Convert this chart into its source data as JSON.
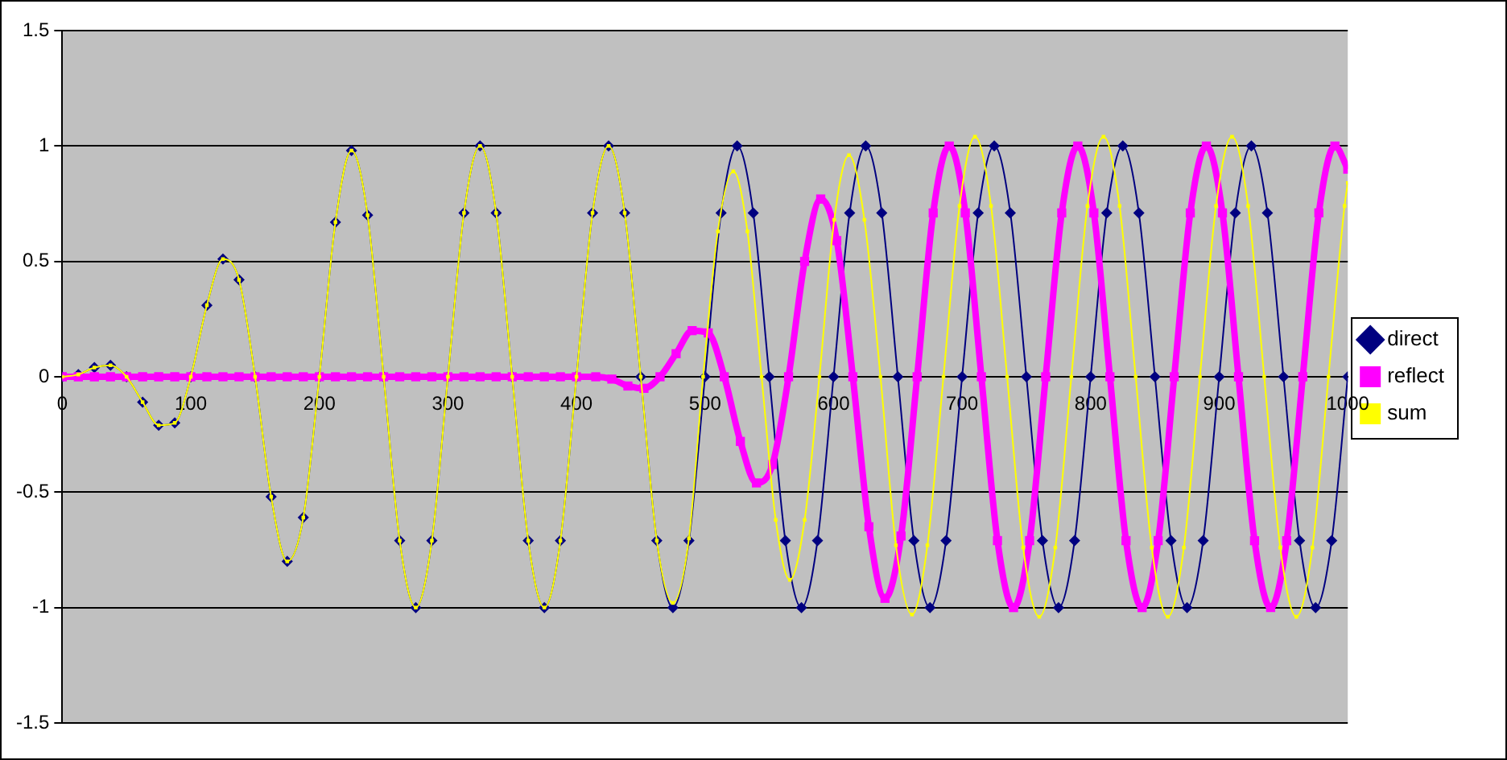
{
  "chart_data": {
    "type": "line",
    "xlim": [
      0,
      1000
    ],
    "xticks": [
      0,
      100,
      200,
      300,
      400,
      500,
      600,
      700,
      800,
      900,
      1000
    ],
    "ylim": [
      -1.5,
      1.5
    ],
    "yticks": [
      -1.5,
      -1,
      -0.5,
      0,
      0.5,
      1,
      1.5
    ],
    "grid": "y",
    "legend": "right",
    "series": [
      {
        "name": "direct",
        "color": "#000080",
        "marker": "diamond",
        "x": [
          0,
          12.5,
          25,
          37.5,
          50,
          62.5,
          75,
          87.5,
          100,
          112.5,
          125,
          137.5,
          150,
          162.5,
          175,
          187.5,
          200,
          212.5,
          225,
          237.5,
          250,
          262.5,
          275,
          287.5,
          300,
          312.5,
          325,
          337.5,
          350,
          362.5,
          375,
          387.5,
          400,
          412.5,
          425,
          437.5,
          450,
          462.5,
          475,
          487.5,
          500,
          512.5,
          525,
          537.5,
          550,
          562.5,
          575,
          587.5,
          600,
          612.5,
          625,
          637.5,
          650,
          662.5,
          675,
          687.5,
          700,
          712.5,
          725,
          737.5,
          750,
          762.5,
          775,
          787.5,
          800,
          812.5,
          825,
          837.5,
          850,
          862.5,
          875,
          887.5,
          900,
          912.5,
          925,
          937.5,
          950,
          962.5,
          975,
          987.5,
          1000
        ],
        "values": [
          0,
          0.01,
          0.04,
          0.05,
          0,
          -0.11,
          -0.21,
          -0.2,
          0,
          0.31,
          0.51,
          0.42,
          0,
          -0.52,
          -0.8,
          -0.61,
          0,
          0.67,
          0.98,
          0.7,
          0,
          -0.71,
          -1,
          -0.71,
          0,
          0.71,
          1,
          0.71,
          0,
          -0.71,
          -1,
          -0.71,
          0,
          0.71,
          1,
          0.71,
          0,
          -0.71,
          -1,
          -0.71,
          0,
          0.71,
          1,
          0.71,
          0,
          -0.71,
          -1,
          -0.71,
          0,
          0.71,
          1,
          0.71,
          0,
          -0.71,
          -1,
          -0.71,
          0,
          0.71,
          1,
          0.71,
          0,
          -0.71,
          -1,
          -0.71,
          0,
          0.71,
          1,
          0.71,
          0,
          -0.71,
          -1,
          -0.71,
          0,
          0.71,
          1,
          0.71,
          0,
          -0.71,
          -1,
          -0.71,
          0
        ]
      },
      {
        "name": "reflect",
        "color": "#ff00ff",
        "marker": "square",
        "x": [
          0,
          12.5,
          25,
          37.5,
          50,
          62.5,
          75,
          87.5,
          100,
          112.5,
          125,
          137.5,
          150,
          162.5,
          175,
          187.5,
          200,
          212.5,
          225,
          237.5,
          250,
          262.5,
          275,
          287.5,
          300,
          312.5,
          325,
          337.5,
          350,
          362.5,
          375,
          387.5,
          400,
          415,
          427.5,
          440,
          452.5,
          465,
          477.5,
          490,
          502.5,
          515,
          527.5,
          540,
          552.5,
          565,
          577.5,
          590,
          602.5,
          615,
          627.5,
          640,
          652.5,
          665,
          677.5,
          690,
          702.5,
          715,
          727.5,
          740,
          752.5,
          765,
          777.5,
          790,
          802.5,
          815,
          827.5,
          840,
          852.5,
          865,
          877.5,
          890,
          902.5,
          915,
          927.5,
          940,
          952.5,
          965,
          977.5,
          990,
          1000
        ],
        "values": [
          0,
          0,
          0,
          0,
          0,
          0,
          0,
          0,
          0,
          0,
          0,
          0,
          0,
          0,
          0,
          0,
          0,
          0,
          0,
          0,
          0,
          0,
          0,
          0,
          0,
          0,
          0,
          0,
          0,
          0,
          0,
          0,
          0,
          0,
          -0.01,
          -0.04,
          -0.05,
          0,
          0.1,
          0.2,
          0.19,
          0,
          -0.28,
          -0.46,
          -0.38,
          0,
          0.5,
          0.77,
          0.59,
          0,
          -0.65,
          -0.96,
          -0.69,
          0,
          0.71,
          1,
          0.71,
          0,
          -0.71,
          -1,
          -0.71,
          0,
          0.71,
          1,
          0.71,
          0,
          -0.71,
          -1,
          -0.71,
          0,
          0.71,
          1,
          0.71,
          0,
          -0.71,
          -1,
          -0.71,
          0,
          0.71,
          1,
          0.9
        ]
      },
      {
        "name": "sum",
        "color": "#ffff00",
        "marker": "square",
        "x": [
          0,
          12.5,
          25,
          37.5,
          50,
          62.5,
          75,
          87.5,
          100,
          112.5,
          125,
          137.5,
          150,
          162.5,
          175,
          187.5,
          200,
          212.5,
          225,
          237.5,
          250,
          262.5,
          275,
          287.5,
          300,
          312.5,
          325,
          337.5,
          350,
          362.5,
          375,
          387.5,
          400,
          412.5,
          425,
          437.5,
          450,
          462.5,
          475,
          487.5,
          498.5,
          510,
          522,
          533,
          544,
          555,
          566,
          577.5,
          589,
          600.5,
          612,
          624,
          636.5,
          648.5,
          661,
          673,
          685.5,
          698,
          710,
          722.5,
          735,
          747.5,
          760,
          772.5,
          785,
          797.5,
          810,
          822.5,
          835,
          847.5,
          860,
          872.5,
          885,
          897.5,
          910,
          922.5,
          935,
          947.5,
          960,
          972.5,
          985,
          997.5,
          1000
        ],
        "values": [
          0,
          0.01,
          0.04,
          0.05,
          0,
          -0.11,
          -0.21,
          -0.2,
          0,
          0.31,
          0.51,
          0.42,
          0,
          -0.52,
          -0.8,
          -0.61,
          0,
          0.67,
          0.98,
          0.7,
          0,
          -0.71,
          -1,
          -0.71,
          0,
          0.71,
          1,
          0.71,
          0,
          -0.71,
          -1,
          -0.71,
          0,
          0.71,
          1,
          0.71,
          0,
          -0.71,
          -0.98,
          -0.7,
          0,
          0.63,
          0.89,
          0.63,
          0,
          -0.62,
          -0.88,
          -0.62,
          0,
          0.68,
          0.96,
          0.68,
          0,
          -0.73,
          -1.03,
          -0.73,
          0,
          0.74,
          1.04,
          0.74,
          0,
          -0.74,
          -1.04,
          -0.74,
          0,
          0.74,
          1.04,
          0.74,
          0,
          -0.74,
          -1.04,
          -0.74,
          0,
          0.74,
          1.04,
          0.74,
          0,
          -0.74,
          -1.04,
          -0.74,
          0,
          0.74,
          0.84
        ]
      }
    ]
  }
}
